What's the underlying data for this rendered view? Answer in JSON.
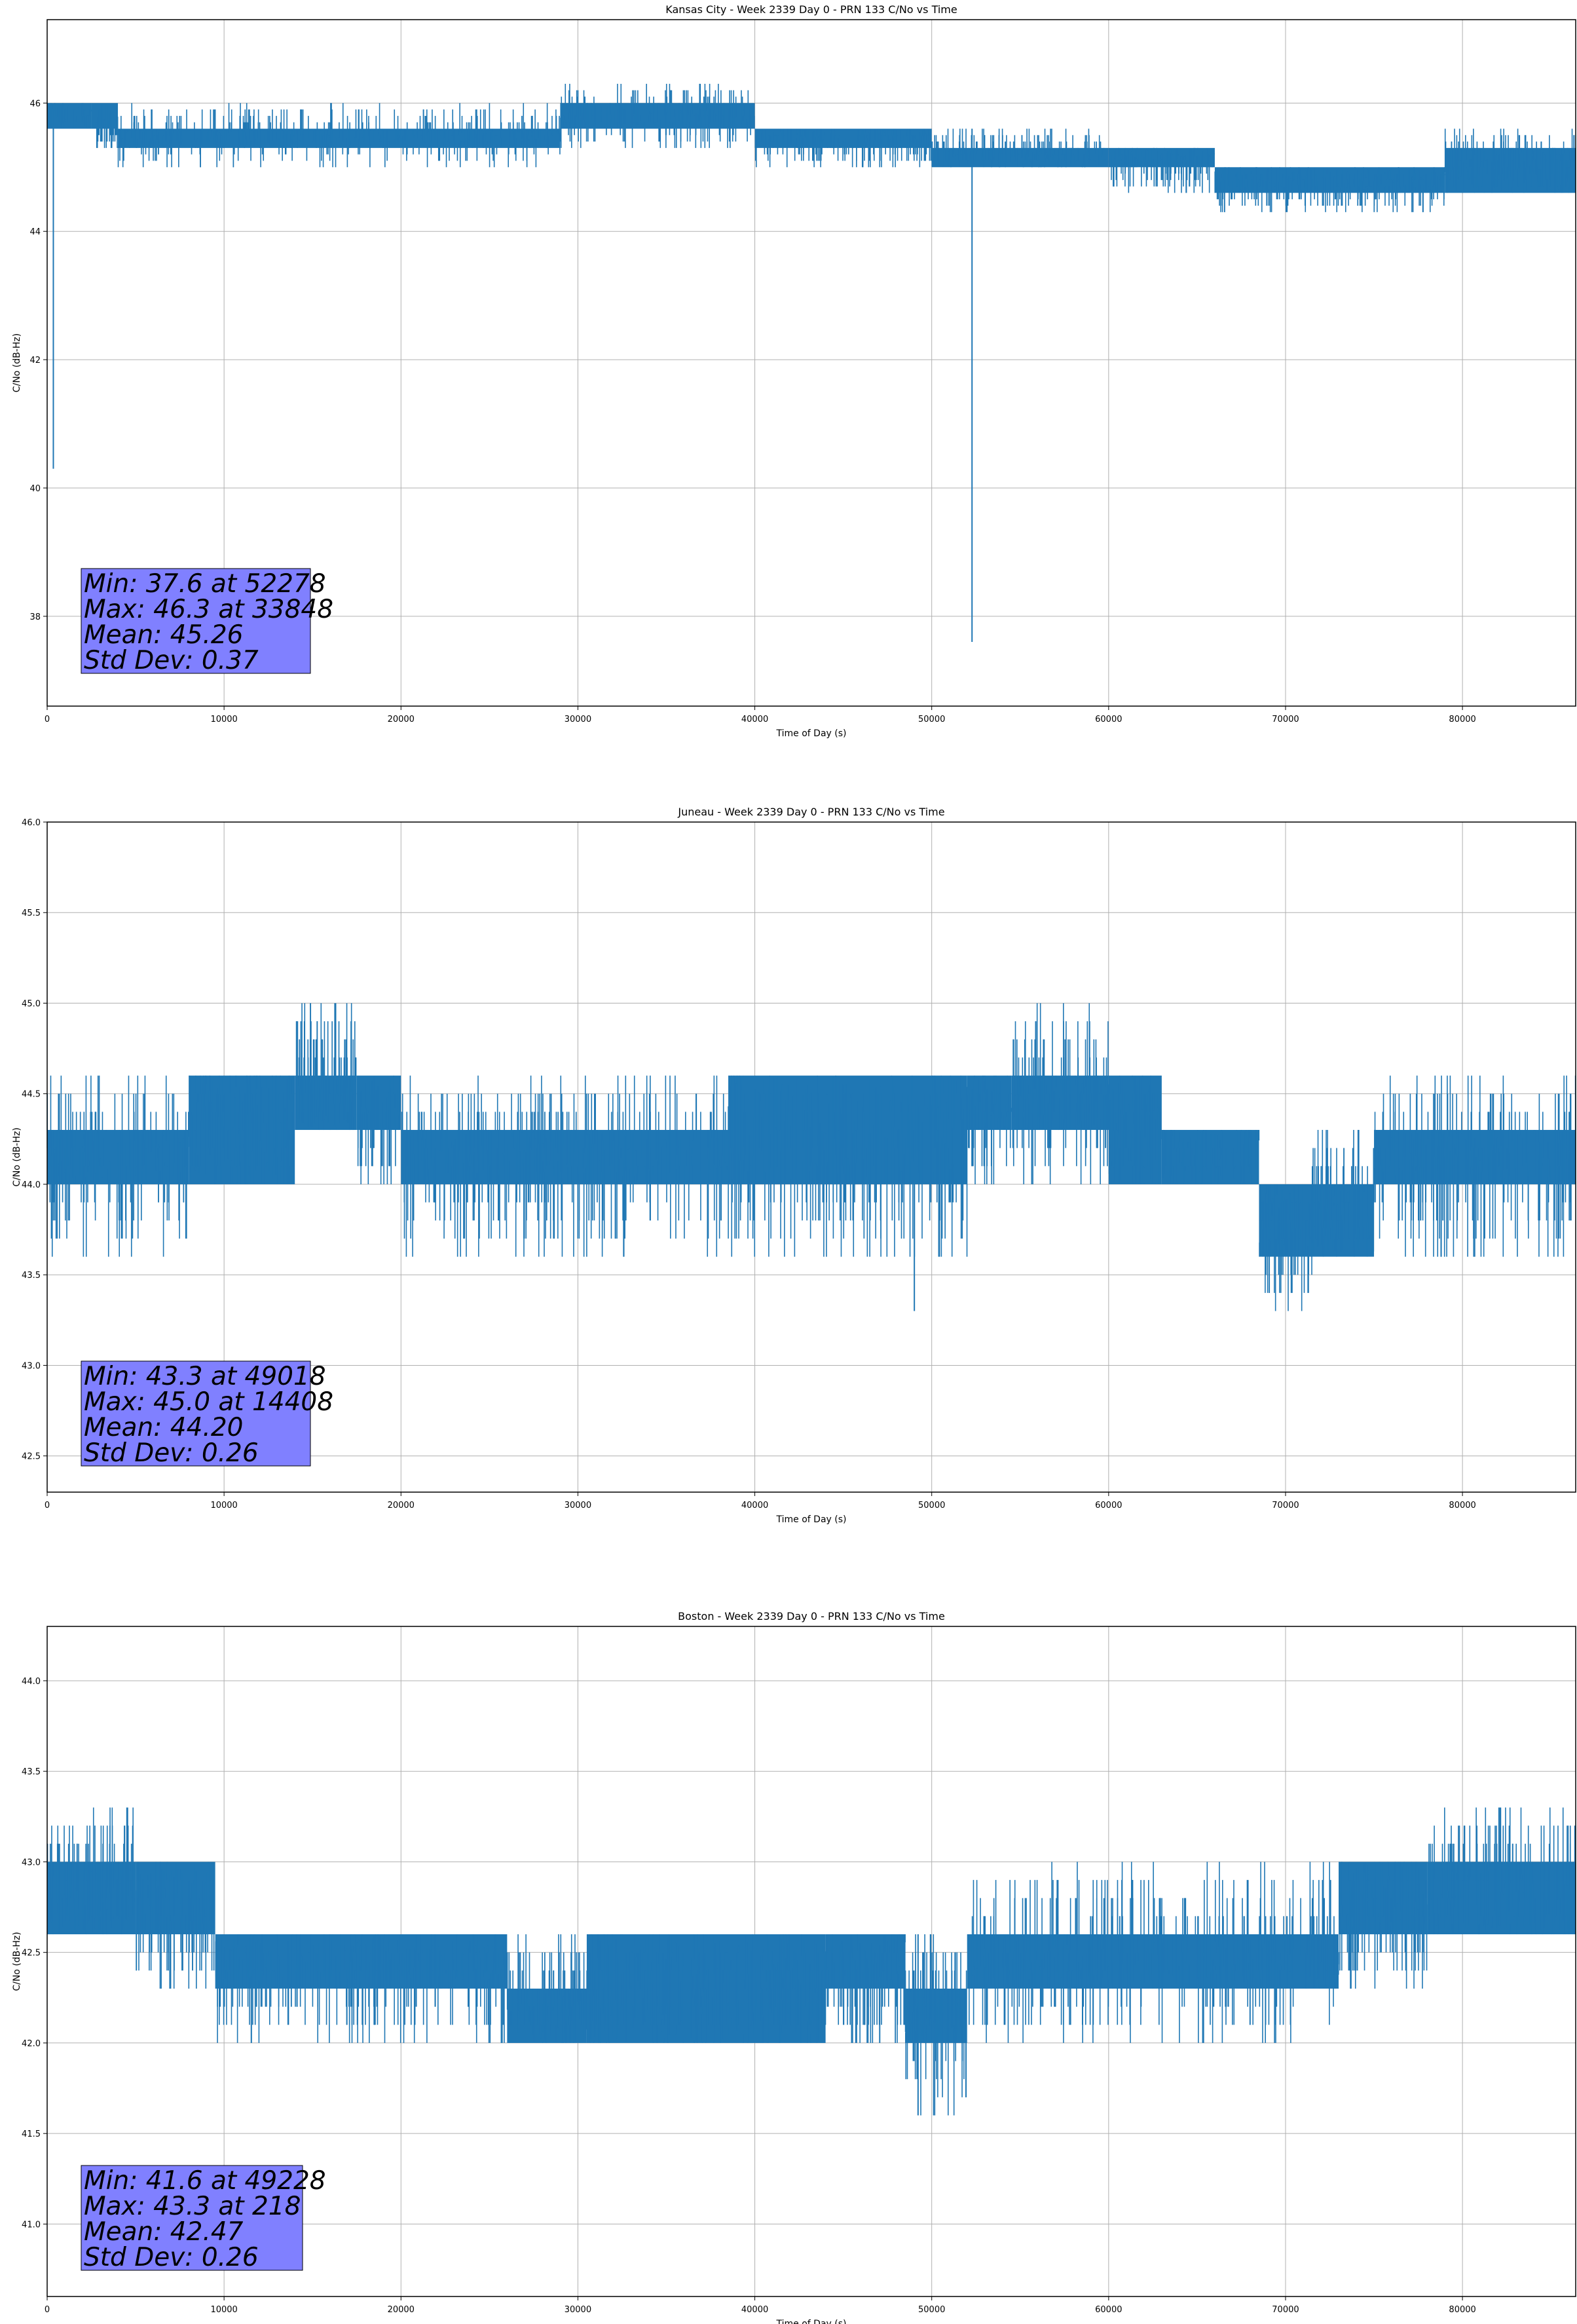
{
  "chart_data": [
    {
      "type": "line",
      "title": "Kansas City - Week 2339 Day 0 - PRN 133 C/No vs Time",
      "xlabel": "Time of Day (s)",
      "ylabel": "C/No (dB-Hz)",
      "xlim": [
        0,
        86400
      ],
      "ylim": [
        36.6,
        47.3
      ],
      "xticks": [
        0,
        10000,
        20000,
        30000,
        40000,
        50000,
        60000,
        70000,
        80000
      ],
      "yticks": [
        38,
        40,
        42,
        44,
        46
      ],
      "ytick_labels": [
        "38",
        "40",
        "42",
        "44",
        "46"
      ],
      "grid": true,
      "color": "#1f77b4",
      "stats_box": {
        "lines": [
          "Min: 37.6 at 52278",
          "Max: 46.3 at 33848",
          "Mean: 45.26",
          "Std Dev: 0.37"
        ],
        "background": "#8080ff"
      },
      "dips": [
        {
          "x": 350,
          "y": 40.3
        },
        {
          "x": 52278,
          "y": 37.6
        }
      ],
      "segments": [
        {
          "x0": 0,
          "x1": 2500,
          "lo": 45.6,
          "hi": 46.0,
          "slo": 45.6,
          "shi": 46.0,
          "count": 60
        },
        {
          "x0": 2500,
          "x1": 4000,
          "lo": 45.6,
          "hi": 46.0,
          "slo": 45.3,
          "shi": 45.6,
          "count": 30
        },
        {
          "x0": 4000,
          "x1": 29000,
          "lo": 45.3,
          "hi": 45.6,
          "slo": 45.0,
          "shi": 46.0,
          "count": 400
        },
        {
          "x0": 29000,
          "x1": 40000,
          "lo": 45.6,
          "hi": 46.0,
          "slo": 45.3,
          "shi": 46.3,
          "count": 220
        },
        {
          "x0": 40000,
          "x1": 50000,
          "lo": 45.3,
          "hi": 45.6,
          "slo": 45.0,
          "shi": 45.6,
          "count": 220
        },
        {
          "x0": 50000,
          "x1": 60000,
          "lo": 45.0,
          "hi": 45.3,
          "slo": 45.0,
          "shi": 45.6,
          "count": 200
        },
        {
          "x0": 60000,
          "x1": 66000,
          "lo": 45.0,
          "hi": 45.3,
          "slo": 44.6,
          "shi": 45.3,
          "count": 120
        },
        {
          "x0": 66000,
          "x1": 79000,
          "lo": 44.6,
          "hi": 45.0,
          "slo": 44.3,
          "shi": 45.0,
          "count": 260
        },
        {
          "x0": 79000,
          "x1": 86400,
          "lo": 44.6,
          "hi": 45.3,
          "slo": 44.6,
          "shi": 45.6,
          "count": 180
        }
      ]
    },
    {
      "type": "line",
      "title": "Juneau - Week 2339 Day 0 - PRN 133 C/No vs Time",
      "xlabel": "Time of Day (s)",
      "ylabel": "C/No (dB-Hz)",
      "xlim": [
        0,
        86400
      ],
      "ylim": [
        42.3,
        46.0
      ],
      "xticks": [
        0,
        10000,
        20000,
        30000,
        40000,
        50000,
        60000,
        70000,
        80000
      ],
      "yticks": [
        42.5,
        43.0,
        43.5,
        44.0,
        44.5,
        45.0,
        45.5,
        46.0
      ],
      "ytick_labels": [
        "42.5",
        "43.0",
        "43.5",
        "44.0",
        "44.5",
        "45.0",
        "45.5",
        "46.0"
      ],
      "grid": true,
      "color": "#1f77b4",
      "stats_box": {
        "lines": [
          "Min: 43.3 at 49018",
          "Max: 45.0 at 14408",
          "Mean: 44.20",
          "Std Dev: 0.26"
        ],
        "background": "#8080ff"
      },
      "dips": [
        {
          "x": 49018,
          "y": 43.3
        }
      ],
      "segments": [
        {
          "x0": 0,
          "x1": 8000,
          "lo": 44.0,
          "hi": 44.3,
          "slo": 43.6,
          "shi": 44.6,
          "count": 180
        },
        {
          "x0": 8000,
          "x1": 14000,
          "lo": 44.0,
          "hi": 44.6,
          "slo": 44.0,
          "shi": 44.6,
          "count": 160
        },
        {
          "x0": 14000,
          "x1": 17500,
          "lo": 44.3,
          "hi": 44.6,
          "slo": 44.3,
          "shi": 45.0,
          "count": 100
        },
        {
          "x0": 17500,
          "x1": 20000,
          "lo": 44.3,
          "hi": 44.6,
          "slo": 44.0,
          "shi": 44.6,
          "count": 60
        },
        {
          "x0": 20000,
          "x1": 38500,
          "lo": 44.0,
          "hi": 44.3,
          "slo": 43.6,
          "shi": 44.6,
          "count": 360
        },
        {
          "x0": 38500,
          "x1": 52000,
          "lo": 44.0,
          "hi": 44.6,
          "slo": 43.6,
          "shi": 44.6,
          "count": 280
        },
        {
          "x0": 52000,
          "x1": 54500,
          "lo": 44.3,
          "hi": 44.6,
          "slo": 44.0,
          "shi": 44.6,
          "count": 60
        },
        {
          "x0": 54500,
          "x1": 60000,
          "lo": 44.3,
          "hi": 44.6,
          "slo": 44.0,
          "shi": 45.0,
          "count": 140
        },
        {
          "x0": 60000,
          "x1": 63000,
          "lo": 44.0,
          "hi": 44.6,
          "slo": 44.0,
          "shi": 44.6,
          "count": 80
        },
        {
          "x0": 63000,
          "x1": 68500,
          "lo": 44.0,
          "hi": 44.3,
          "slo": 44.0,
          "shi": 44.3,
          "count": 100
        },
        {
          "x0": 68500,
          "x1": 71500,
          "lo": 43.6,
          "hi": 44.0,
          "slo": 43.3,
          "shi": 44.0,
          "count": 90
        },
        {
          "x0": 71500,
          "x1": 75000,
          "lo": 43.6,
          "hi": 44.0,
          "slo": 43.6,
          "shi": 44.3,
          "count": 90
        },
        {
          "x0": 75000,
          "x1": 86400,
          "lo": 44.0,
          "hi": 44.3,
          "slo": 43.6,
          "shi": 44.6,
          "count": 240
        }
      ]
    },
    {
      "type": "line",
      "title": "Boston - Week 2339 Day 0 - PRN 133 C/No vs Time",
      "xlabel": "Time of Day (s)",
      "ylabel": "C/No (dB-Hz)",
      "xlim": [
        0,
        86400
      ],
      "ylim": [
        40.6,
        44.3
      ],
      "xticks": [
        0,
        10000,
        20000,
        30000,
        40000,
        50000,
        60000,
        70000,
        80000
      ],
      "yticks": [
        41.0,
        41.5,
        42.0,
        42.5,
        43.0,
        43.5,
        44.0
      ],
      "ytick_labels": [
        "41.0",
        "41.5",
        "42.0",
        "42.5",
        "43.0",
        "43.5",
        "44.0"
      ],
      "grid": true,
      "color": "#1f77b4",
      "stats_box": {
        "lines": [
          "Min: 41.6 at 49228",
          "Max: 43.3 at 218",
          "Mean: 42.47",
          "Std Dev: 0.26"
        ],
        "background": "#8080ff"
      },
      "dips": [
        {
          "x": 49228,
          "y": 41.6
        }
      ],
      "segments": [
        {
          "x0": 0,
          "x1": 5000,
          "lo": 42.6,
          "hi": 43.0,
          "slo": 42.6,
          "shi": 43.3,
          "count": 120
        },
        {
          "x0": 5000,
          "x1": 9500,
          "lo": 42.6,
          "hi": 43.0,
          "slo": 42.3,
          "shi": 43.0,
          "count": 100
        },
        {
          "x0": 9500,
          "x1": 26000,
          "lo": 42.3,
          "hi": 42.6,
          "slo": 42.0,
          "shi": 42.6,
          "count": 320
        },
        {
          "x0": 26000,
          "x1": 30500,
          "lo": 42.0,
          "hi": 42.3,
          "slo": 42.0,
          "shi": 42.6,
          "count": 100
        },
        {
          "x0": 30500,
          "x1": 44000,
          "lo": 42.0,
          "hi": 42.6,
          "slo": 42.0,
          "shi": 42.6,
          "count": 280
        },
        {
          "x0": 44000,
          "x1": 48500,
          "lo": 42.3,
          "hi": 42.6,
          "slo": 42.0,
          "shi": 42.6,
          "count": 100
        },
        {
          "x0": 48500,
          "x1": 52000,
          "lo": 42.0,
          "hi": 42.3,
          "slo": 41.6,
          "shi": 42.6,
          "count": 90
        },
        {
          "x0": 52000,
          "x1": 73000,
          "lo": 42.3,
          "hi": 42.6,
          "slo": 42.0,
          "shi": 43.0,
          "count": 400
        },
        {
          "x0": 73000,
          "x1": 78000,
          "lo": 42.6,
          "hi": 43.0,
          "slo": 42.3,
          "shi": 43.0,
          "count": 120
        },
        {
          "x0": 78000,
          "x1": 86400,
          "lo": 42.6,
          "hi": 43.0,
          "slo": 42.6,
          "shi": 43.3,
          "count": 180
        }
      ]
    }
  ]
}
